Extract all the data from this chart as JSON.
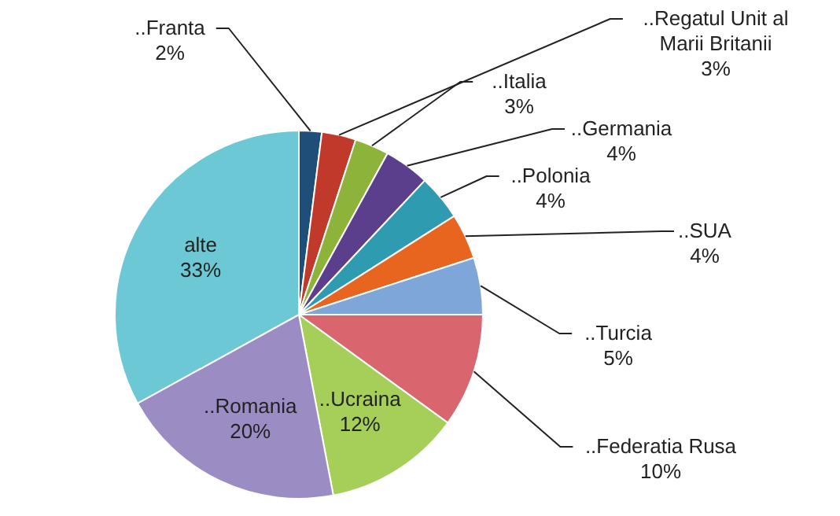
{
  "chart_data": {
    "type": "pie",
    "categories": [
      "..Franta",
      "..Regatul Unit al Marii Britanii",
      "..Italia",
      "..Germania",
      "..Polonia",
      "..SUA",
      "..Turcia",
      "..Federatia Rusa",
      "..Ucraina",
      "..Romania",
      "alte"
    ],
    "values": [
      2,
      3,
      3,
      4,
      4,
      4,
      5,
      10,
      12,
      20,
      33
    ],
    "colors": [
      "#1f4e79",
      "#c0392b",
      "#8db33a",
      "#5b3f8c",
      "#2f9bb0",
      "#e8651f",
      "#7ea6d8",
      "#d9656f",
      "#a6cf5a",
      "#9b8cc4",
      "#6cc8d4"
    ],
    "value_labels": [
      "2%",
      "3%",
      "3%",
      "4%",
      "4%",
      "4%",
      "5%",
      "10%",
      "12%",
      "20%",
      "33%"
    ]
  }
}
